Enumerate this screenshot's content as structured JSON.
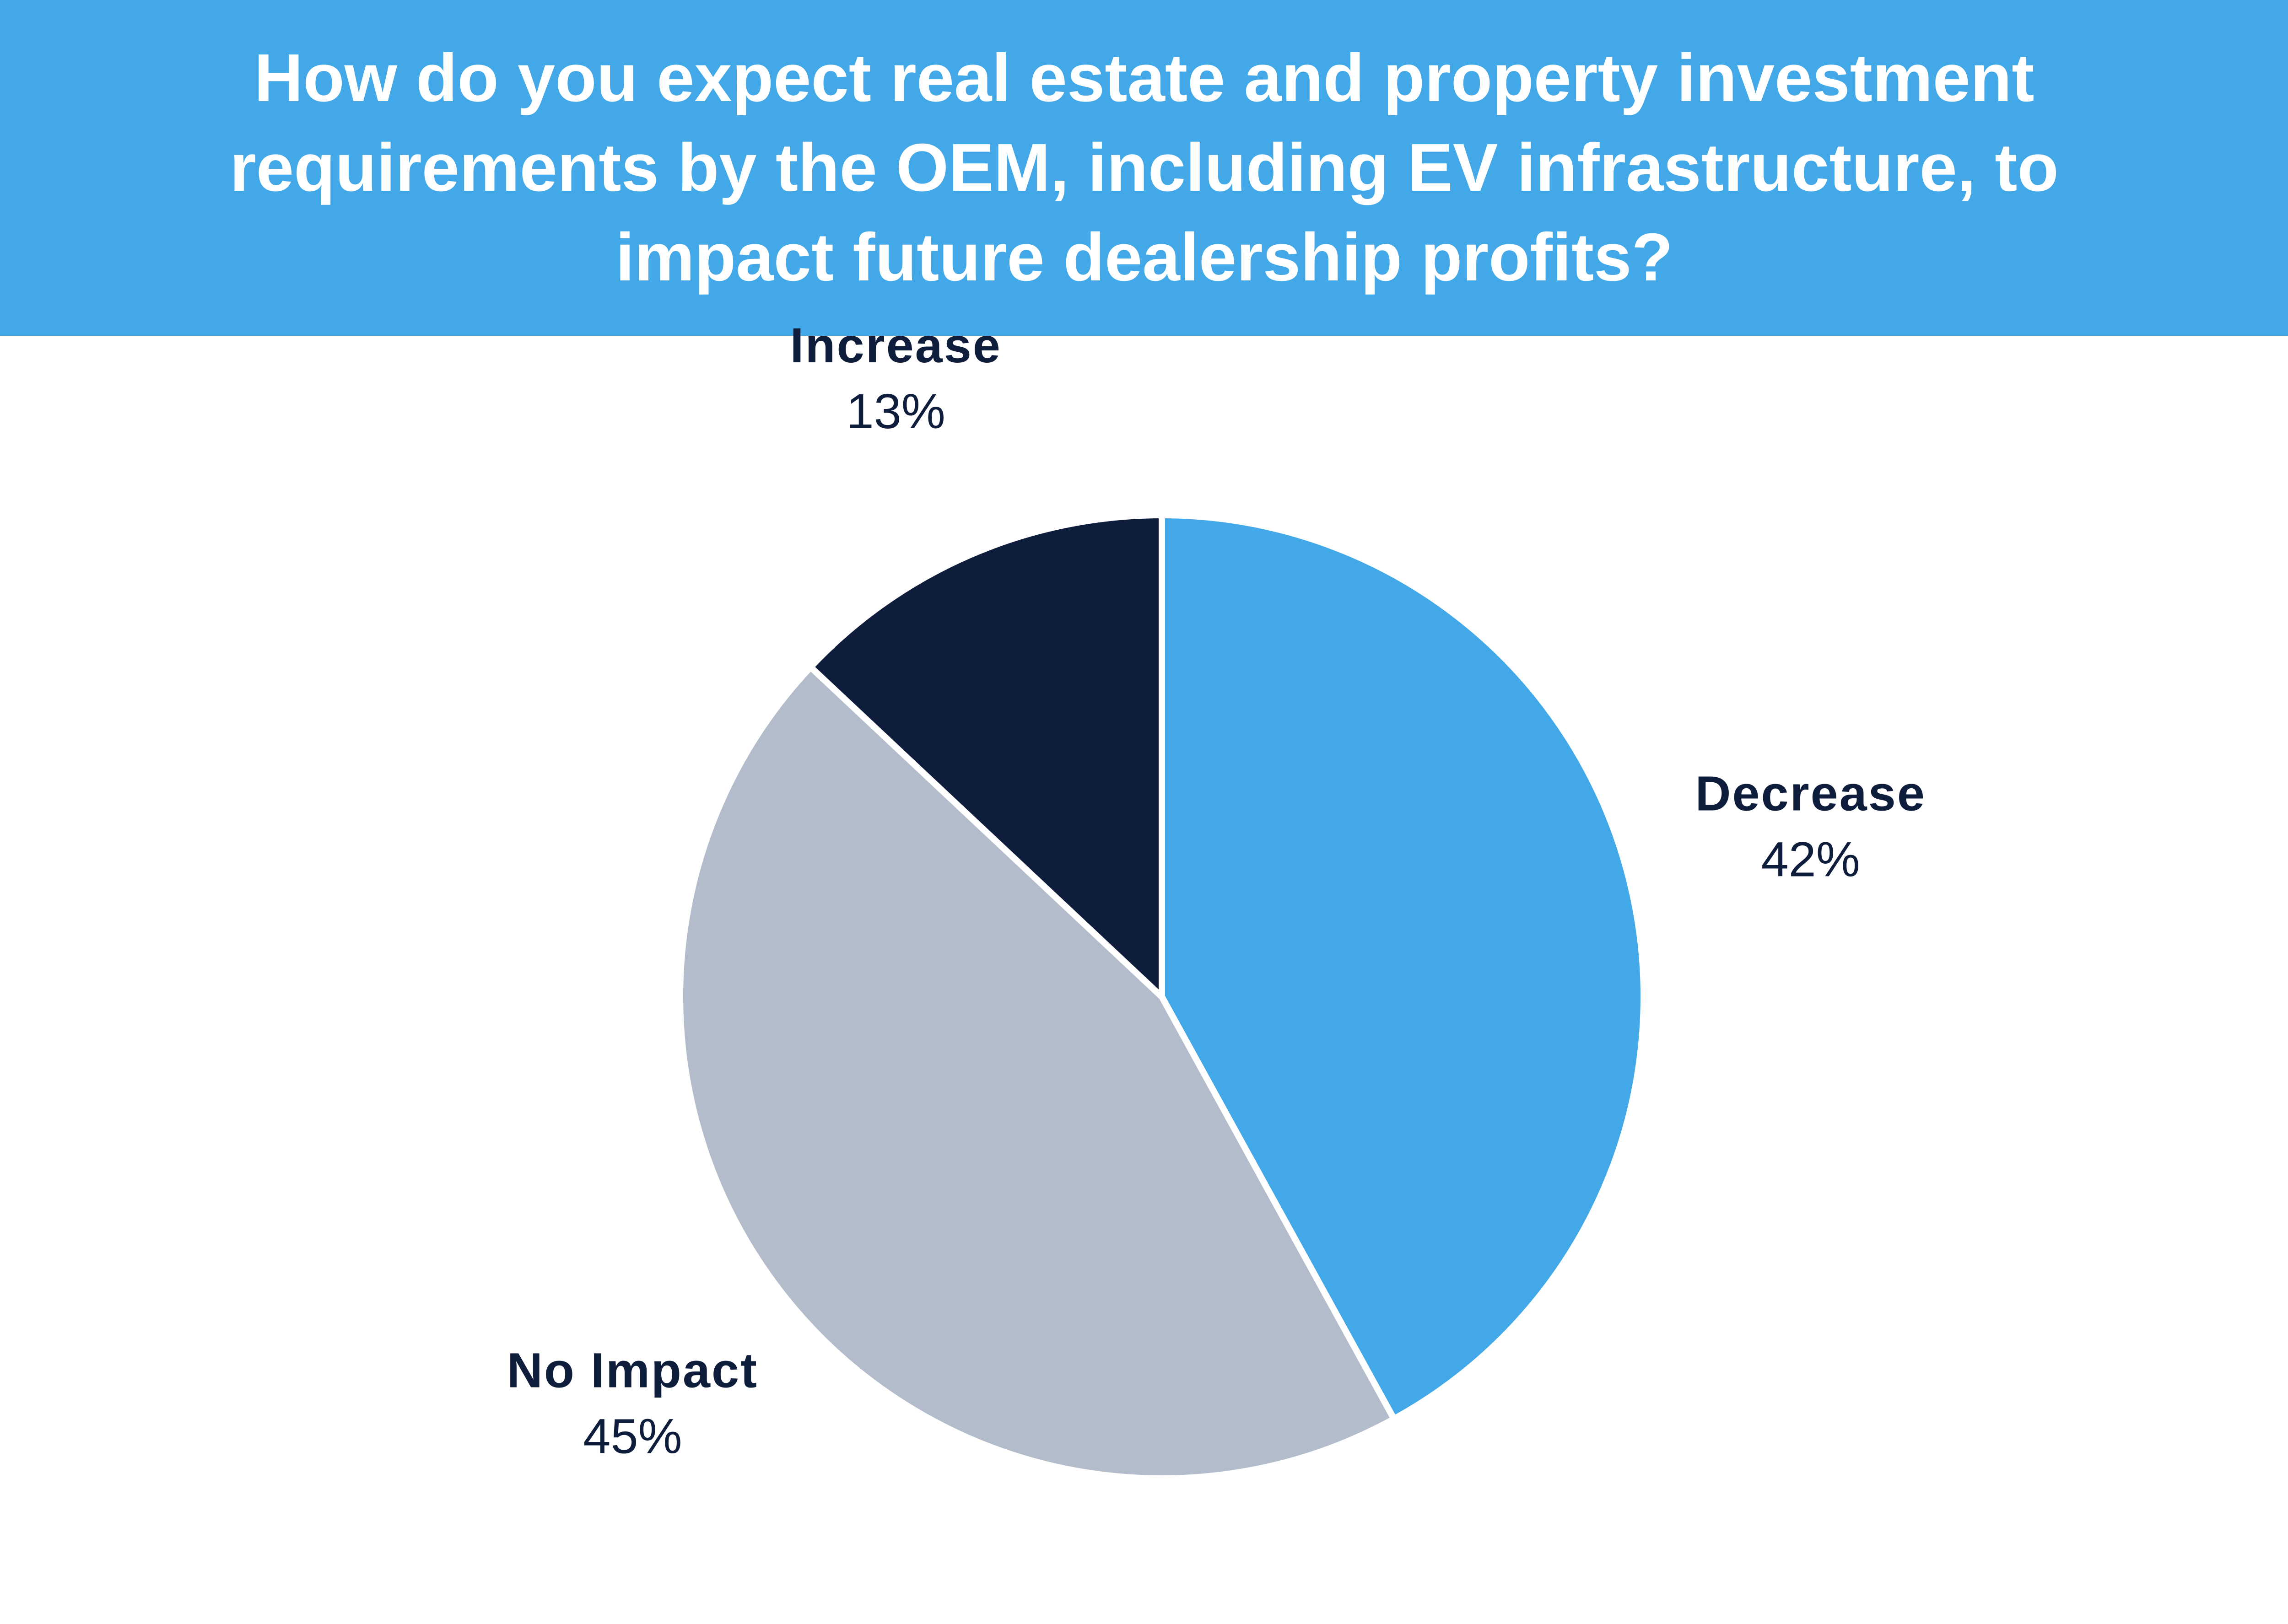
{
  "chart_data": {
    "type": "pie",
    "title": "How do you expect real estate and property investment requirements by the OEM, including EV infrastructure, to impact future dealership profits?",
    "categories": [
      "Decrease",
      "No Impact",
      "Increase"
    ],
    "values": [
      42,
      45,
      13
    ],
    "value_labels": [
      "42%",
      "45%",
      "13%"
    ],
    "colors": [
      "#42a8e8",
      "#b3bccb",
      "#0f1d3d"
    ]
  }
}
